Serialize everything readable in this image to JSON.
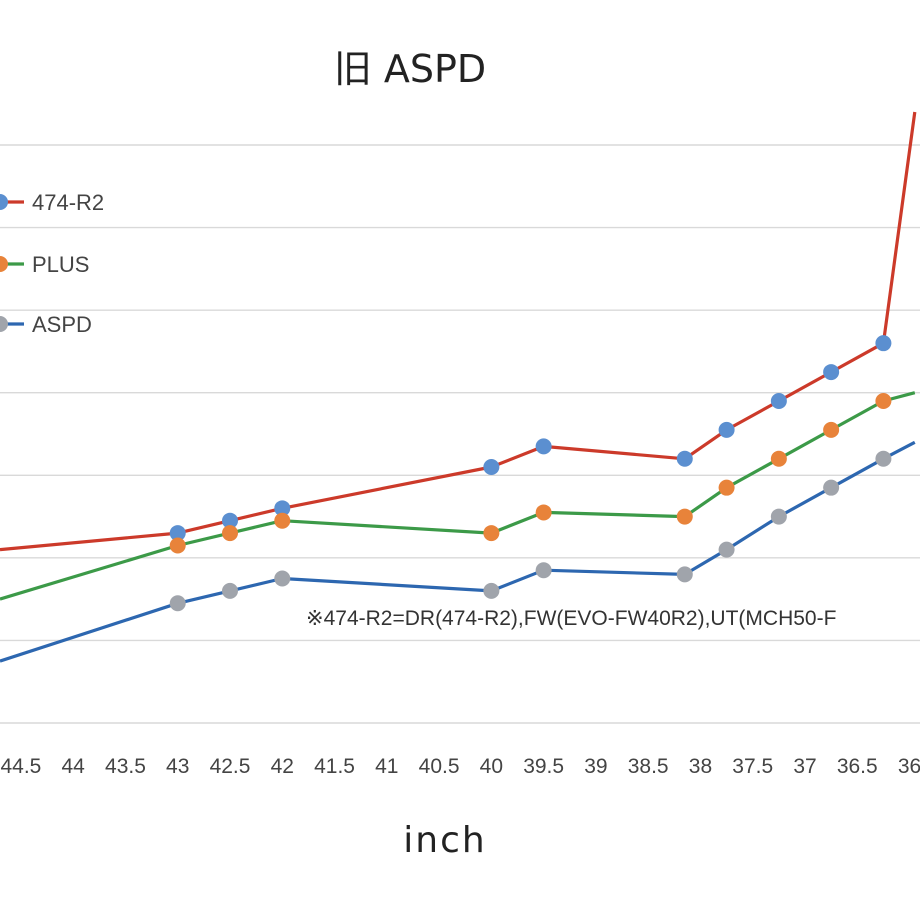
{
  "chart_data": {
    "type": "line",
    "title": "旧 ASPD",
    "xlabel": "inch",
    "ylabel": "",
    "x_ticks": [
      "44.5",
      "44",
      "43.5",
      "43",
      "42.5",
      "42",
      "41.5",
      "41",
      "40.5",
      "40",
      "39.5",
      "39",
      "38.5",
      "38",
      "37.5",
      "37",
      "36.5",
      "36"
    ],
    "x_range": [
      44.7,
      35.9
    ],
    "grid": true,
    "legend_position": "left",
    "annotation": "※474-R2=DR(474-R2),FW(EVO-FW40R2),UT(MCH50-F",
    "series": [
      {
        "name": "474-R2",
        "color": "#cc3a2a",
        "marker_color": "#5b8fd0",
        "x_start": 44.7,
        "x_end": 35.95,
        "y_start": 4.1,
        "y_end": 9.4,
        "points": [
          {
            "x": 43.0,
            "y": 4.3
          },
          {
            "x": 42.5,
            "y": 4.45
          },
          {
            "x": 42.0,
            "y": 4.6
          },
          {
            "x": 40.0,
            "y": 5.1
          },
          {
            "x": 39.5,
            "y": 5.35
          },
          {
            "x": 38.15,
            "y": 5.2
          },
          {
            "x": 37.75,
            "y": 5.55
          },
          {
            "x": 37.25,
            "y": 5.9
          },
          {
            "x": 36.75,
            "y": 6.25
          },
          {
            "x": 36.25,
            "y": 6.6
          }
        ]
      },
      {
        "name": "PLUS",
        "color": "#3c9a48",
        "marker_color": "#e8833a",
        "x_start": 44.7,
        "x_end": 35.95,
        "y_start": 3.5,
        "y_end": 6.0,
        "points": [
          {
            "x": 43.0,
            "y": 4.15
          },
          {
            "x": 42.5,
            "y": 4.3
          },
          {
            "x": 42.0,
            "y": 4.45
          },
          {
            "x": 40.0,
            "y": 4.3
          },
          {
            "x": 39.5,
            "y": 4.55
          },
          {
            "x": 38.15,
            "y": 4.5
          },
          {
            "x": 37.75,
            "y": 4.85
          },
          {
            "x": 37.25,
            "y": 5.2
          },
          {
            "x": 36.75,
            "y": 5.55
          },
          {
            "x": 36.25,
            "y": 5.9
          }
        ]
      },
      {
        "name": "ASPD",
        "color": "#2d67b0",
        "marker_color": "#a0a4ab",
        "x_start": 44.7,
        "x_end": 35.95,
        "y_start": 2.75,
        "y_end": 5.4,
        "points": [
          {
            "x": 43.0,
            "y": 3.45
          },
          {
            "x": 42.5,
            "y": 3.6
          },
          {
            "x": 42.0,
            "y": 3.75
          },
          {
            "x": 40.0,
            "y": 3.6
          },
          {
            "x": 39.5,
            "y": 3.85
          },
          {
            "x": 38.15,
            "y": 3.8
          },
          {
            "x": 37.75,
            "y": 4.1
          },
          {
            "x": 37.25,
            "y": 4.5
          },
          {
            "x": 36.75,
            "y": 4.85
          },
          {
            "x": 36.25,
            "y": 5.2
          }
        ]
      }
    ]
  }
}
